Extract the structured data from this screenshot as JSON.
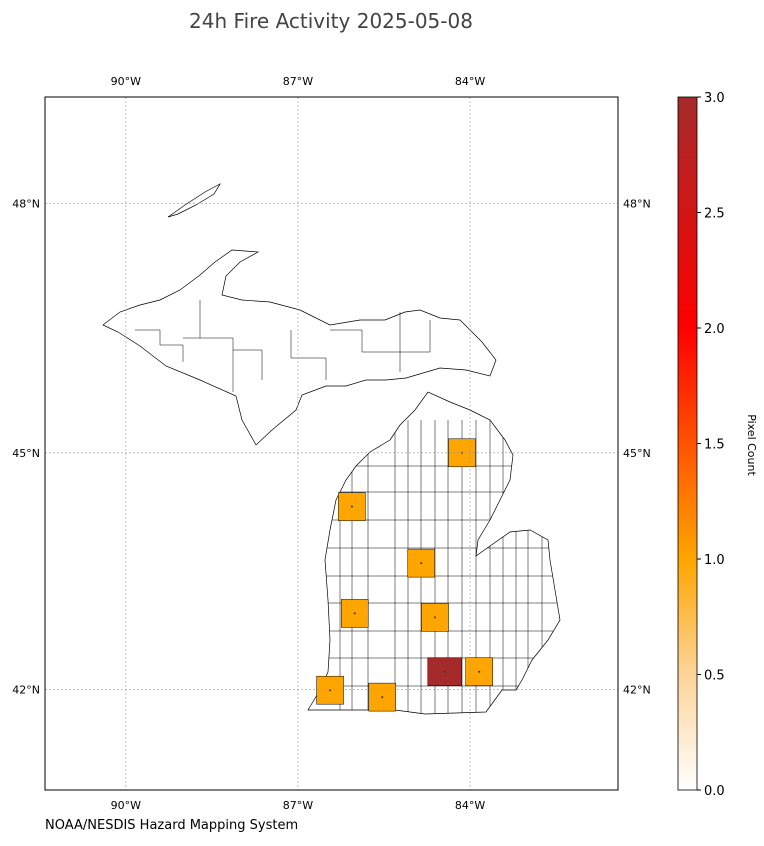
{
  "title": "24h Fire Activity 2025-05-08",
  "source": "NOAA/NESDIS Hazard Mapping System",
  "map": {
    "projection": "mercator",
    "xlim": [
      -91.41,
      -81.42
    ],
    "ylim": [
      40.68,
      49.23
    ],
    "xticks": [
      {
        "value": -90,
        "label": "90°W"
      },
      {
        "value": -87,
        "label": "87°W"
      },
      {
        "value": -84,
        "label": "84°W"
      }
    ],
    "yticks": [
      {
        "value": 42,
        "label": "42°N"
      },
      {
        "value": 45,
        "label": "45°N"
      },
      {
        "value": 48,
        "label": "48°N"
      }
    ],
    "fires": [
      {
        "lon": -84.14,
        "lat": 45.0,
        "value": 1
      },
      {
        "lon": -86.06,
        "lat": 44.33,
        "value": 1
      },
      {
        "lon": -84.85,
        "lat": 43.62,
        "value": 1
      },
      {
        "lon": -86.01,
        "lat": 42.98,
        "value": 1
      },
      {
        "lon": -84.61,
        "lat": 42.93,
        "value": 1
      },
      {
        "lon": -84.44,
        "lat": 42.23,
        "value": 3
      },
      {
        "lon": -83.84,
        "lat": 42.23,
        "value": 1
      },
      {
        "lon": -86.44,
        "lat": 41.99,
        "value": 1
      },
      {
        "lon": -85.53,
        "lat": 41.9,
        "value": 1
      }
    ]
  },
  "colorbar": {
    "label": "Pixel Count",
    "lim": [
      0,
      3
    ],
    "ticks": [
      {
        "value": 0,
        "label": "0.0"
      },
      {
        "value": 0.5,
        "label": "0.5"
      },
      {
        "value": 1,
        "label": "1.0"
      },
      {
        "value": 1.5,
        "label": "1.5"
      },
      {
        "value": 2,
        "label": "2.0"
      },
      {
        "value": 2.5,
        "label": "2.5"
      },
      {
        "value": 3,
        "label": "3.0"
      }
    ],
    "colormap": [
      {
        "value": 0,
        "color": "#ffffff"
      },
      {
        "value": 0.5,
        "color": "#fdd49a"
      },
      {
        "value": 1,
        "color": "#ffa500"
      },
      {
        "value": 2,
        "color": "#ff0000"
      },
      {
        "value": 3,
        "color": "#a52a2a"
      }
    ]
  }
}
